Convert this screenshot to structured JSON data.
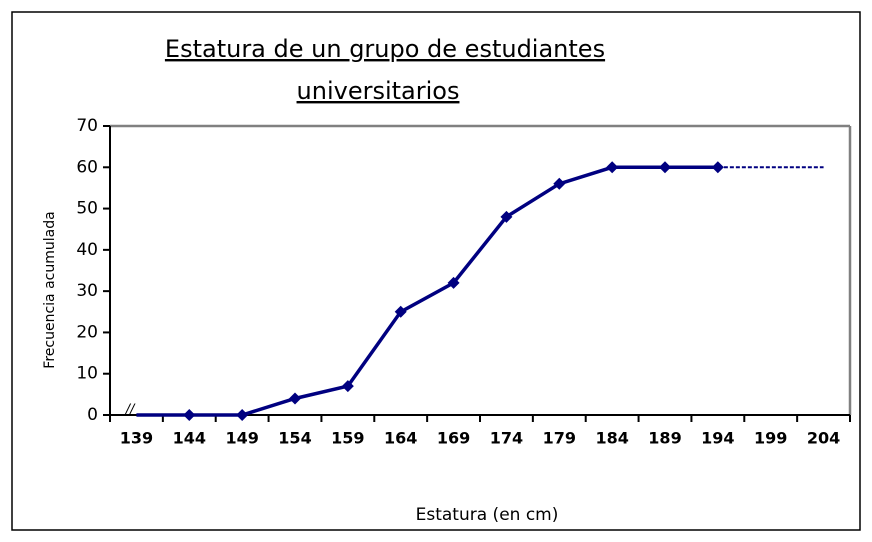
{
  "chart_data": {
    "type": "line",
    "title": [
      "Estatura de un grupo de estudiantes",
      "universitarios"
    ],
    "xlabel": "Estatura (en cm)",
    "ylabel": "Frecuencia acumulada",
    "annotation": "//",
    "categories": [
      "139",
      "144",
      "149",
      "154",
      "159",
      "164",
      "169",
      "174",
      "179",
      "184",
      "189",
      "194",
      "199",
      "204"
    ],
    "series": [
      {
        "color": "#000080",
        "style": "solid",
        "marker": "diamond",
        "values": [
          0,
          0,
          0,
          4,
          7,
          25,
          32,
          48,
          56,
          60,
          60,
          60,
          null,
          null
        ]
      },
      {
        "color": "#000080",
        "style": "dashed",
        "values": [
          null,
          null,
          null,
          null,
          null,
          null,
          null,
          null,
          null,
          null,
          null,
          60,
          60,
          60
        ]
      }
    ],
    "ylim": [
      0,
      70
    ],
    "yticks": [
      0,
      10,
      20,
      30,
      40,
      50,
      60,
      70
    ],
    "grid": false
  }
}
